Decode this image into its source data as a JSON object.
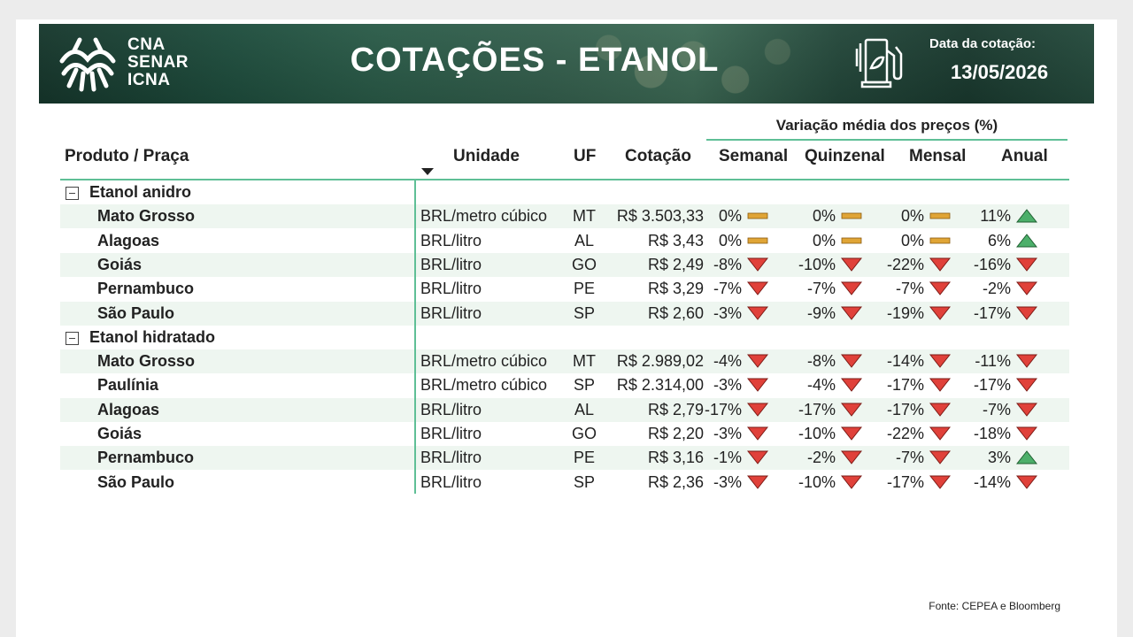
{
  "header": {
    "logo_lines": [
      "CNA",
      "SENAR",
      "ICNA"
    ],
    "title": "COTAÇÕES - ETANOL",
    "date_label": "Data da cotação:",
    "date_value": "13/05/2026"
  },
  "table": {
    "variation_header": "Variação média dos preços (%)",
    "columns": {
      "product": "Produto / Praça",
      "unit": "Unidade",
      "uf": "UF",
      "price": "Cotação",
      "weekly": "Semanal",
      "biweekly": "Quinzenal",
      "monthly": "Mensal",
      "annual": "Anual"
    },
    "groups": [
      {
        "label": "Etanol anidro",
        "rows": [
          {
            "place": "Mato Grosso",
            "unit": "BRL/metro cúbico",
            "uf": "MT",
            "price": "R$ 3.503,33",
            "weekly": "0%",
            "weekly_dir": "flat",
            "biweekly": "0%",
            "biweekly_dir": "flat",
            "monthly": "0%",
            "monthly_dir": "flat",
            "annual": "11%",
            "annual_dir": "up"
          },
          {
            "place": "Alagoas",
            "unit": "BRL/litro",
            "uf": "AL",
            "price": "R$ 3,43",
            "weekly": "0%",
            "weekly_dir": "flat",
            "biweekly": "0%",
            "biweekly_dir": "flat",
            "monthly": "0%",
            "monthly_dir": "flat",
            "annual": "6%",
            "annual_dir": "up"
          },
          {
            "place": "Goiás",
            "unit": "BRL/litro",
            "uf": "GO",
            "price": "R$ 2,49",
            "weekly": "-8%",
            "weekly_dir": "down",
            "biweekly": "-10%",
            "biweekly_dir": "down",
            "monthly": "-22%",
            "monthly_dir": "down",
            "annual": "-16%",
            "annual_dir": "down"
          },
          {
            "place": "Pernambuco",
            "unit": "BRL/litro",
            "uf": "PE",
            "price": "R$ 3,29",
            "weekly": "-7%",
            "weekly_dir": "down",
            "biweekly": "-7%",
            "biweekly_dir": "down",
            "monthly": "-7%",
            "monthly_dir": "down",
            "annual": "-2%",
            "annual_dir": "down"
          },
          {
            "place": "São Paulo",
            "unit": "BRL/litro",
            "uf": "SP",
            "price": "R$ 2,60",
            "weekly": "-3%",
            "weekly_dir": "down",
            "biweekly": "-9%",
            "biweekly_dir": "down",
            "monthly": "-19%",
            "monthly_dir": "down",
            "annual": "-17%",
            "annual_dir": "down"
          }
        ]
      },
      {
        "label": "Etanol hidratado",
        "rows": [
          {
            "place": "Mato Grosso",
            "unit": "BRL/metro cúbico",
            "uf": "MT",
            "price": "R$ 2.989,02",
            "weekly": "-4%",
            "weekly_dir": "down",
            "biweekly": "-8%",
            "biweekly_dir": "down",
            "monthly": "-14%",
            "monthly_dir": "down",
            "annual": "-11%",
            "annual_dir": "down"
          },
          {
            "place": "Paulínia",
            "unit": "BRL/metro cúbico",
            "uf": "SP",
            "price": "R$ 2.314,00",
            "weekly": "-3%",
            "weekly_dir": "down",
            "biweekly": "-4%",
            "biweekly_dir": "down",
            "monthly": "-17%",
            "monthly_dir": "down",
            "annual": "-17%",
            "annual_dir": "down"
          },
          {
            "place": "Alagoas",
            "unit": "BRL/litro",
            "uf": "AL",
            "price": "R$ 2,79",
            "weekly": "-17%",
            "weekly_dir": "down",
            "biweekly": "-17%",
            "biweekly_dir": "down",
            "monthly": "-17%",
            "monthly_dir": "down",
            "annual": "-7%",
            "annual_dir": "down"
          },
          {
            "place": "Goiás",
            "unit": "BRL/litro",
            "uf": "GO",
            "price": "R$ 2,20",
            "weekly": "-3%",
            "weekly_dir": "down",
            "biweekly": "-10%",
            "biweekly_dir": "down",
            "monthly": "-22%",
            "monthly_dir": "down",
            "annual": "-18%",
            "annual_dir": "down"
          },
          {
            "place": "Pernambuco",
            "unit": "BRL/litro",
            "uf": "PE",
            "price": "R$ 3,16",
            "weekly": "-1%",
            "weekly_dir": "down",
            "biweekly": "-2%",
            "biweekly_dir": "down",
            "monthly": "-7%",
            "monthly_dir": "down",
            "annual": "3%",
            "annual_dir": "up"
          },
          {
            "place": "São Paulo",
            "unit": "BRL/litro",
            "uf": "SP",
            "price": "R$ 2,36",
            "weekly": "-3%",
            "weekly_dir": "down",
            "biweekly": "-10%",
            "biweekly_dir": "down",
            "monthly": "-17%",
            "monthly_dir": "down",
            "annual": "-14%",
            "annual_dir": "down"
          }
        ]
      }
    ]
  },
  "footer": {
    "source": "Fonte: CEPEA e Bloomberg"
  },
  "colors": {
    "up": "#4caf6a",
    "down": "#e0413a",
    "flat": "#e0a536",
    "accent": "#5fbf96",
    "row_shade": "#eef6f0"
  }
}
